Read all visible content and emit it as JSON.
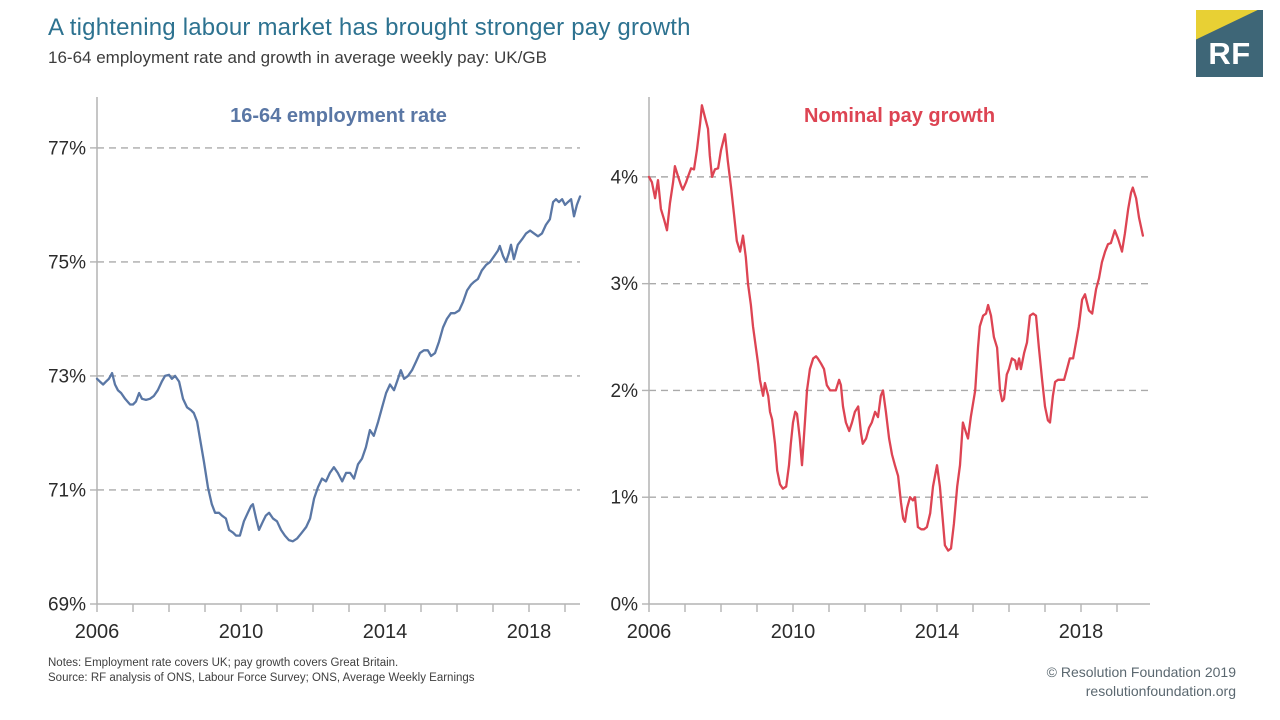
{
  "header": {
    "title": "A tightening labour market has brought stronger pay growth",
    "subtitle": "16-64 employment rate and growth in average weekly pay: UK/GB"
  },
  "logo": {
    "text": "RF",
    "bg_color": "#3e6677",
    "accent_color": "#e8d034"
  },
  "footer": {
    "notes": "Notes: Employment rate covers UK; pay growth covers Great Britain.",
    "source": "Source: RF analysis of ONS, Labour Force Survey; ONS, Average Weekly Earnings",
    "copyright": "© Resolution Foundation 2019",
    "website": "resolutionfoundation.org"
  },
  "chart_data": [
    {
      "type": "line",
      "title": "16-64 employment rate",
      "color": "#5a77a5",
      "grid": true,
      "legend": "none",
      "xlabel": "",
      "ylabel": "",
      "xlim": [
        2006,
        2019.45
      ],
      "ylim": [
        69,
        77.84
      ],
      "yticks": [
        {
          "v": 69,
          "label": "69%"
        },
        {
          "v": 71,
          "label": "71%"
        },
        {
          "v": 73,
          "label": "73%"
        },
        {
          "v": 75,
          "label": "75%"
        },
        {
          "v": 77,
          "label": "77%"
        }
      ],
      "xticks": [
        {
          "v": 2006,
          "label": "2006"
        },
        {
          "v": 2010,
          "label": "2010"
        },
        {
          "v": 2014,
          "label": "2014"
        },
        {
          "v": 2018,
          "label": "2018"
        }
      ],
      "minor_xtick_step": 1,
      "points": [
        [
          2006.0,
          72.95
        ],
        [
          2006.08,
          72.9
        ],
        [
          2006.17,
          72.85
        ],
        [
          2006.25,
          72.9
        ],
        [
          2006.33,
          72.95
        ],
        [
          2006.42,
          73.05
        ],
        [
          2006.5,
          72.85
        ],
        [
          2006.58,
          72.75
        ],
        [
          2006.67,
          72.7
        ],
        [
          2006.78,
          72.6
        ],
        [
          2006.92,
          72.5
        ],
        [
          2007.0,
          72.5
        ],
        [
          2007.08,
          72.55
        ],
        [
          2007.17,
          72.7
        ],
        [
          2007.25,
          72.6
        ],
        [
          2007.36,
          72.58
        ],
        [
          2007.47,
          72.6
        ],
        [
          2007.58,
          72.65
        ],
        [
          2007.69,
          72.75
        ],
        [
          2007.8,
          72.9
        ],
        [
          2007.89,
          73.0
        ],
        [
          2008.0,
          73.02
        ],
        [
          2008.08,
          72.95
        ],
        [
          2008.17,
          73.0
        ],
        [
          2008.28,
          72.9
        ],
        [
          2008.39,
          72.6
        ],
        [
          2008.5,
          72.45
        ],
        [
          2008.61,
          72.4
        ],
        [
          2008.69,
          72.35
        ],
        [
          2008.78,
          72.2
        ],
        [
          2008.86,
          71.9
        ],
        [
          2008.97,
          71.5
        ],
        [
          2009.08,
          71.05
        ],
        [
          2009.19,
          70.75
        ],
        [
          2009.28,
          70.6
        ],
        [
          2009.39,
          70.6
        ],
        [
          2009.47,
          70.55
        ],
        [
          2009.58,
          70.5
        ],
        [
          2009.67,
          70.3
        ],
        [
          2009.78,
          70.25
        ],
        [
          2009.86,
          70.2
        ],
        [
          2009.97,
          70.2
        ],
        [
          2010.08,
          70.45
        ],
        [
          2010.19,
          70.6
        ],
        [
          2010.28,
          70.72
        ],
        [
          2010.33,
          70.75
        ],
        [
          2010.42,
          70.5
        ],
        [
          2010.5,
          70.3
        ],
        [
          2010.61,
          70.45
        ],
        [
          2010.69,
          70.55
        ],
        [
          2010.78,
          70.6
        ],
        [
          2010.89,
          70.5
        ],
        [
          2011.0,
          70.45
        ],
        [
          2011.11,
          70.3
        ],
        [
          2011.22,
          70.2
        ],
        [
          2011.33,
          70.12
        ],
        [
          2011.44,
          70.1
        ],
        [
          2011.56,
          70.15
        ],
        [
          2011.69,
          70.25
        ],
        [
          2011.81,
          70.35
        ],
        [
          2011.92,
          70.5
        ],
        [
          2012.03,
          70.85
        ],
        [
          2012.14,
          71.05
        ],
        [
          2012.25,
          71.2
        ],
        [
          2012.36,
          71.15
        ],
        [
          2012.47,
          71.3
        ],
        [
          2012.58,
          71.4
        ],
        [
          2012.69,
          71.3
        ],
        [
          2012.81,
          71.15
        ],
        [
          2012.92,
          71.3
        ],
        [
          2013.03,
          71.3
        ],
        [
          2013.14,
          71.2
        ],
        [
          2013.25,
          71.45
        ],
        [
          2013.36,
          71.55
        ],
        [
          2013.47,
          71.75
        ],
        [
          2013.58,
          72.05
        ],
        [
          2013.69,
          71.95
        ],
        [
          2013.81,
          72.2
        ],
        [
          2013.92,
          72.45
        ],
        [
          2014.03,
          72.7
        ],
        [
          2014.14,
          72.85
        ],
        [
          2014.25,
          72.75
        ],
        [
          2014.36,
          72.95
        ],
        [
          2014.44,
          73.1
        ],
        [
          2014.53,
          72.95
        ],
        [
          2014.64,
          73.0
        ],
        [
          2014.75,
          73.1
        ],
        [
          2014.86,
          73.25
        ],
        [
          2014.97,
          73.4
        ],
        [
          2015.08,
          73.45
        ],
        [
          2015.19,
          73.45
        ],
        [
          2015.28,
          73.35
        ],
        [
          2015.39,
          73.4
        ],
        [
          2015.5,
          73.6
        ],
        [
          2015.61,
          73.85
        ],
        [
          2015.72,
          74.0
        ],
        [
          2015.83,
          74.1
        ],
        [
          2015.94,
          74.1
        ],
        [
          2016.06,
          74.15
        ],
        [
          2016.17,
          74.3
        ],
        [
          2016.28,
          74.5
        ],
        [
          2016.39,
          74.6
        ],
        [
          2016.47,
          74.65
        ],
        [
          2016.58,
          74.7
        ],
        [
          2016.69,
          74.85
        ],
        [
          2016.81,
          74.95
        ],
        [
          2016.92,
          75.0
        ],
        [
          2017.03,
          75.1
        ],
        [
          2017.14,
          75.2
        ],
        [
          2017.19,
          75.28
        ],
        [
          2017.28,
          75.1
        ],
        [
          2017.36,
          75.0
        ],
        [
          2017.44,
          75.15
        ],
        [
          2017.5,
          75.3
        ],
        [
          2017.58,
          75.05
        ],
        [
          2017.69,
          75.3
        ],
        [
          2017.81,
          75.4
        ],
        [
          2017.92,
          75.5
        ],
        [
          2018.03,
          75.55
        ],
        [
          2018.14,
          75.5
        ],
        [
          2018.25,
          75.45
        ],
        [
          2018.36,
          75.5
        ],
        [
          2018.47,
          75.65
        ],
        [
          2018.58,
          75.75
        ],
        [
          2018.67,
          76.05
        ],
        [
          2018.75,
          76.1
        ],
        [
          2018.83,
          76.05
        ],
        [
          2018.92,
          76.1
        ],
        [
          2019.0,
          76.0
        ],
        [
          2019.08,
          76.05
        ],
        [
          2019.17,
          76.1
        ],
        [
          2019.25,
          75.8
        ],
        [
          2019.33,
          76.0
        ],
        [
          2019.42,
          76.15
        ]
      ]
    },
    {
      "type": "line",
      "title": "Nominal pay growth",
      "color": "#dd4453",
      "grid": true,
      "legend": "none",
      "xlabel": "",
      "ylabel": "",
      "xlim": [
        2006,
        2019.92
      ],
      "ylim": [
        0,
        4.72
      ],
      "yticks": [
        {
          "v": 0,
          "label": "0%"
        },
        {
          "v": 1,
          "label": "1%"
        },
        {
          "v": 2,
          "label": "2%"
        },
        {
          "v": 3,
          "label": "3%"
        },
        {
          "v": 4,
          "label": "4%"
        }
      ],
      "xticks": [
        {
          "v": 2006,
          "label": "2006"
        },
        {
          "v": 2010,
          "label": "2010"
        },
        {
          "v": 2014,
          "label": "2014"
        },
        {
          "v": 2018,
          "label": "2018"
        }
      ],
      "minor_xtick_step": 1,
      "points": [
        [
          2006.0,
          4.0
        ],
        [
          2006.08,
          3.95
        ],
        [
          2006.17,
          3.8
        ],
        [
          2006.25,
          3.97
        ],
        [
          2006.33,
          3.7
        ],
        [
          2006.42,
          3.6
        ],
        [
          2006.5,
          3.5
        ],
        [
          2006.58,
          3.75
        ],
        [
          2006.67,
          3.95
        ],
        [
          2006.72,
          4.1
        ],
        [
          2006.81,
          4.0
        ],
        [
          2006.89,
          3.92
        ],
        [
          2006.94,
          3.88
        ],
        [
          2007.03,
          3.95
        ],
        [
          2007.08,
          4.0
        ],
        [
          2007.17,
          4.08
        ],
        [
          2007.25,
          4.07
        ],
        [
          2007.33,
          4.25
        ],
        [
          2007.42,
          4.5
        ],
        [
          2007.47,
          4.67
        ],
        [
          2007.56,
          4.55
        ],
        [
          2007.64,
          4.45
        ],
        [
          2007.69,
          4.2
        ],
        [
          2007.75,
          4.0
        ],
        [
          2007.83,
          4.07
        ],
        [
          2007.92,
          4.08
        ],
        [
          2008.0,
          4.25
        ],
        [
          2008.11,
          4.4
        ],
        [
          2008.19,
          4.15
        ],
        [
          2008.28,
          3.9
        ],
        [
          2008.36,
          3.65
        ],
        [
          2008.44,
          3.4
        ],
        [
          2008.53,
          3.3
        ],
        [
          2008.61,
          3.45
        ],
        [
          2008.69,
          3.25
        ],
        [
          2008.75,
          3.0
        ],
        [
          2008.83,
          2.8
        ],
        [
          2008.89,
          2.6
        ],
        [
          2008.97,
          2.4
        ],
        [
          2009.03,
          2.25
        ],
        [
          2009.08,
          2.1
        ],
        [
          2009.17,
          1.95
        ],
        [
          2009.22,
          2.07
        ],
        [
          2009.31,
          1.95
        ],
        [
          2009.36,
          1.8
        ],
        [
          2009.42,
          1.73
        ],
        [
          2009.5,
          1.5
        ],
        [
          2009.56,
          1.25
        ],
        [
          2009.64,
          1.12
        ],
        [
          2009.72,
          1.08
        ],
        [
          2009.81,
          1.1
        ],
        [
          2009.89,
          1.3
        ],
        [
          2009.94,
          1.5
        ],
        [
          2010.0,
          1.7
        ],
        [
          2010.06,
          1.8
        ],
        [
          2010.11,
          1.78
        ],
        [
          2010.19,
          1.55
        ],
        [
          2010.25,
          1.3
        ],
        [
          2010.33,
          1.7
        ],
        [
          2010.39,
          2.0
        ],
        [
          2010.47,
          2.2
        ],
        [
          2010.56,
          2.3
        ],
        [
          2010.64,
          2.32
        ],
        [
          2010.69,
          2.3
        ],
        [
          2010.78,
          2.25
        ],
        [
          2010.86,
          2.2
        ],
        [
          2010.94,
          2.05
        ],
        [
          2011.03,
          2.0
        ],
        [
          2011.11,
          2.0
        ],
        [
          2011.19,
          2.0
        ],
        [
          2011.28,
          2.1
        ],
        [
          2011.33,
          2.05
        ],
        [
          2011.39,
          1.85
        ],
        [
          2011.47,
          1.7
        ],
        [
          2011.56,
          1.62
        ],
        [
          2011.64,
          1.7
        ],
        [
          2011.72,
          1.8
        ],
        [
          2011.81,
          1.85
        ],
        [
          2011.89,
          1.6
        ],
        [
          2011.94,
          1.5
        ],
        [
          2012.03,
          1.55
        ],
        [
          2012.11,
          1.65
        ],
        [
          2012.19,
          1.7
        ],
        [
          2012.28,
          1.8
        ],
        [
          2012.36,
          1.75
        ],
        [
          2012.44,
          1.95
        ],
        [
          2012.5,
          2.0
        ],
        [
          2012.58,
          1.8
        ],
        [
          2012.67,
          1.55
        ],
        [
          2012.75,
          1.4
        ],
        [
          2012.83,
          1.3
        ],
        [
          2012.92,
          1.2
        ],
        [
          2013.0,
          0.95
        ],
        [
          2013.06,
          0.8
        ],
        [
          2013.11,
          0.77
        ],
        [
          2013.17,
          0.9
        ],
        [
          2013.25,
          1.0
        ],
        [
          2013.33,
          0.97
        ],
        [
          2013.39,
          1.0
        ],
        [
          2013.47,
          0.72
        ],
        [
          2013.56,
          0.7
        ],
        [
          2013.64,
          0.7
        ],
        [
          2013.72,
          0.72
        ],
        [
          2013.81,
          0.85
        ],
        [
          2013.89,
          1.1
        ],
        [
          2014.0,
          1.3
        ],
        [
          2014.08,
          1.1
        ],
        [
          2014.17,
          0.75
        ],
        [
          2014.22,
          0.55
        ],
        [
          2014.31,
          0.5
        ],
        [
          2014.39,
          0.52
        ],
        [
          2014.47,
          0.75
        ],
        [
          2014.56,
          1.1
        ],
        [
          2014.64,
          1.3
        ],
        [
          2014.72,
          1.7
        ],
        [
          2014.81,
          1.6
        ],
        [
          2014.86,
          1.55
        ],
        [
          2014.94,
          1.75
        ],
        [
          2015.06,
          2.0
        ],
        [
          2015.14,
          2.4
        ],
        [
          2015.19,
          2.6
        ],
        [
          2015.28,
          2.7
        ],
        [
          2015.36,
          2.72
        ],
        [
          2015.42,
          2.8
        ],
        [
          2015.5,
          2.7
        ],
        [
          2015.58,
          2.5
        ],
        [
          2015.67,
          2.4
        ],
        [
          2015.75,
          2.0
        ],
        [
          2015.81,
          1.9
        ],
        [
          2015.86,
          1.92
        ],
        [
          2015.94,
          2.15
        ],
        [
          2016.0,
          2.2
        ],
        [
          2016.08,
          2.3
        ],
        [
          2016.17,
          2.28
        ],
        [
          2016.22,
          2.2
        ],
        [
          2016.28,
          2.3
        ],
        [
          2016.33,
          2.2
        ],
        [
          2016.42,
          2.35
        ],
        [
          2016.5,
          2.45
        ],
        [
          2016.58,
          2.7
        ],
        [
          2016.67,
          2.72
        ],
        [
          2016.75,
          2.7
        ],
        [
          2016.83,
          2.4
        ],
        [
          2016.92,
          2.1
        ],
        [
          2017.0,
          1.85
        ],
        [
          2017.08,
          1.72
        ],
        [
          2017.14,
          1.7
        ],
        [
          2017.22,
          1.95
        ],
        [
          2017.28,
          2.08
        ],
        [
          2017.36,
          2.1
        ],
        [
          2017.44,
          2.1
        ],
        [
          2017.53,
          2.1
        ],
        [
          2017.61,
          2.2
        ],
        [
          2017.69,
          2.3
        ],
        [
          2017.78,
          2.3
        ],
        [
          2017.86,
          2.45
        ],
        [
          2017.94,
          2.6
        ],
        [
          2018.03,
          2.85
        ],
        [
          2018.11,
          2.9
        ],
        [
          2018.22,
          2.75
        ],
        [
          2018.31,
          2.72
        ],
        [
          2018.42,
          2.95
        ],
        [
          2018.5,
          3.05
        ],
        [
          2018.58,
          3.2
        ],
        [
          2018.67,
          3.3
        ],
        [
          2018.75,
          3.37
        ],
        [
          2018.83,
          3.38
        ],
        [
          2018.94,
          3.5
        ],
        [
          2019.03,
          3.42
        ],
        [
          2019.14,
          3.3
        ],
        [
          2019.22,
          3.47
        ],
        [
          2019.31,
          3.7
        ],
        [
          2019.39,
          3.85
        ],
        [
          2019.44,
          3.9
        ],
        [
          2019.53,
          3.8
        ],
        [
          2019.61,
          3.62
        ],
        [
          2019.72,
          3.45
        ]
      ]
    }
  ]
}
